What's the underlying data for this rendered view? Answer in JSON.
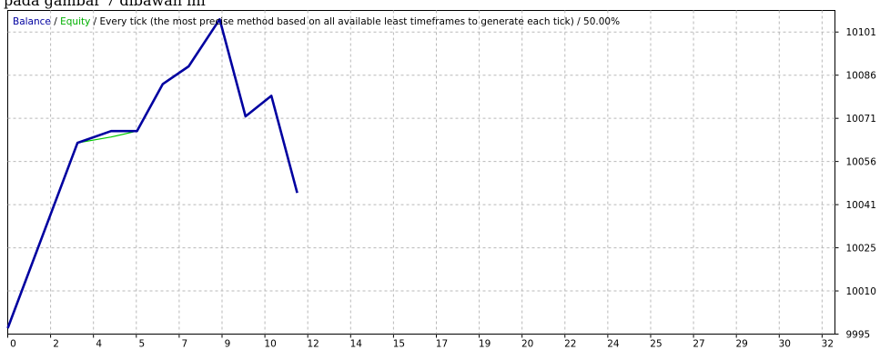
{
  "caption": "pada gambar 7 dibawah ini",
  "chart_data": {
    "type": "line",
    "header": {
      "balance_label": "Balance",
      "sep1": " / ",
      "equity_label": "Equity",
      "rest": " / Every tick (the most precise method based on all available least timeframes to generate each tick) / 50.00%"
    },
    "xlim": [
      0,
      32
    ],
    "ylim": [
      9995,
      10105
    ],
    "x_ticks": [
      "0",
      "2",
      "4",
      "5",
      "7",
      "9",
      "10",
      "12",
      "14",
      "15",
      "17",
      "19",
      "20",
      "22",
      "24",
      "25",
      "27",
      "29",
      "30",
      "32"
    ],
    "y_ticks": [
      "10101",
      "10086",
      "10071",
      "10056",
      "10041",
      "10025",
      "10010",
      "9995"
    ],
    "series": [
      {
        "name": "Balance",
        "color": "#0000a0",
        "points": [
          [
            0,
            9997
          ],
          [
            2.7,
            10060
          ],
          [
            4,
            10064
          ],
          [
            5,
            10064
          ],
          [
            6,
            10080
          ],
          [
            7,
            10086
          ],
          [
            8.2,
            10102
          ],
          [
            9.2,
            10069
          ],
          [
            10.2,
            10076
          ],
          [
            11.2,
            10043
          ]
        ]
      },
      {
        "name": "Equity",
        "color": "#00c800",
        "points": [
          [
            2.7,
            10060
          ],
          [
            4,
            10062
          ],
          [
            5,
            10064
          ]
        ]
      }
    ],
    "grid": true
  }
}
